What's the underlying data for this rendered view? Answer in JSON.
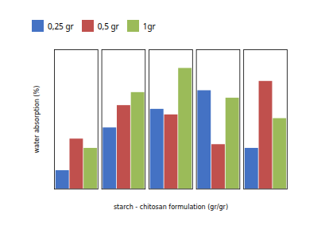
{
  "chart_data": {
    "type": "bar",
    "categories": [
      null,
      null,
      null,
      null,
      null
    ],
    "series": [
      {
        "name": "0,25 gr",
        "color": "#4472C4",
        "values": [
          10,
          33,
          43,
          53,
          22
        ]
      },
      {
        "name": "0,5 gr",
        "color": "#C0504D",
        "values": [
          27,
          45,
          40,
          24,
          58
        ]
      },
      {
        "name": "1gr",
        "color": "#9BBB59",
        "values": [
          22,
          52,
          65,
          49,
          38
        ]
      }
    ],
    "xlabel": "starch - chitosan formulation (gr/gr)",
    "ylabel": "water absorption (%)",
    "ylim": [
      0,
      75
    ],
    "yticks": [],
    "grid": false,
    "legend": "upper left",
    "tick_labels": false
  }
}
